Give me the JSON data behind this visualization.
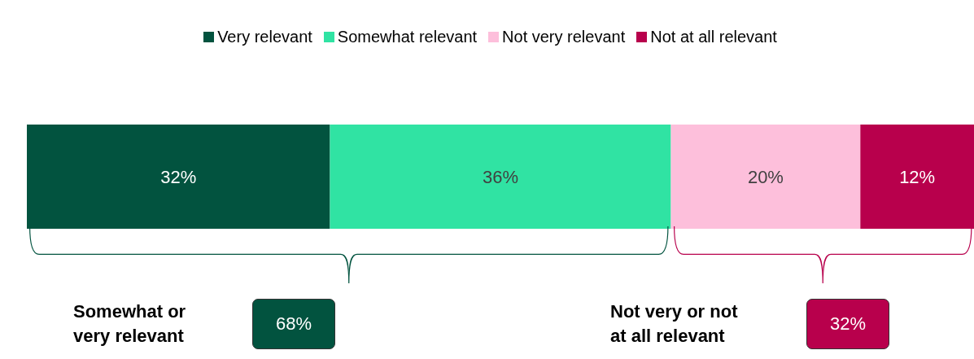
{
  "chart_data": {
    "type": "bar",
    "orientation": "horizontal",
    "stacked": true,
    "categories": [
      null
    ],
    "series": [
      {
        "name": "Very relevant",
        "color": "#02533f",
        "values": [
          32
        ],
        "value_labels": [
          "32%"
        ]
      },
      {
        "name": "Somewhat relevant",
        "color": "#30e3a3",
        "values": [
          36
        ],
        "value_labels": [
          "36%"
        ]
      },
      {
        "name": "Not very relevant",
        "color": "#fdbfdb",
        "values": [
          20
        ],
        "value_labels": [
          "20%"
        ]
      },
      {
        "name": "Not at all relevant",
        "color": "#b8004c",
        "values": [
          12
        ],
        "value_labels": [
          "12%"
        ]
      }
    ],
    "xlim": [
      0,
      100
    ],
    "tick_labels": false,
    "grid": false,
    "legend": "top",
    "annotations": [
      "Somewhat or very relevant",
      "68%",
      "Not very or not at all relevant",
      "32%"
    ]
  }
}
